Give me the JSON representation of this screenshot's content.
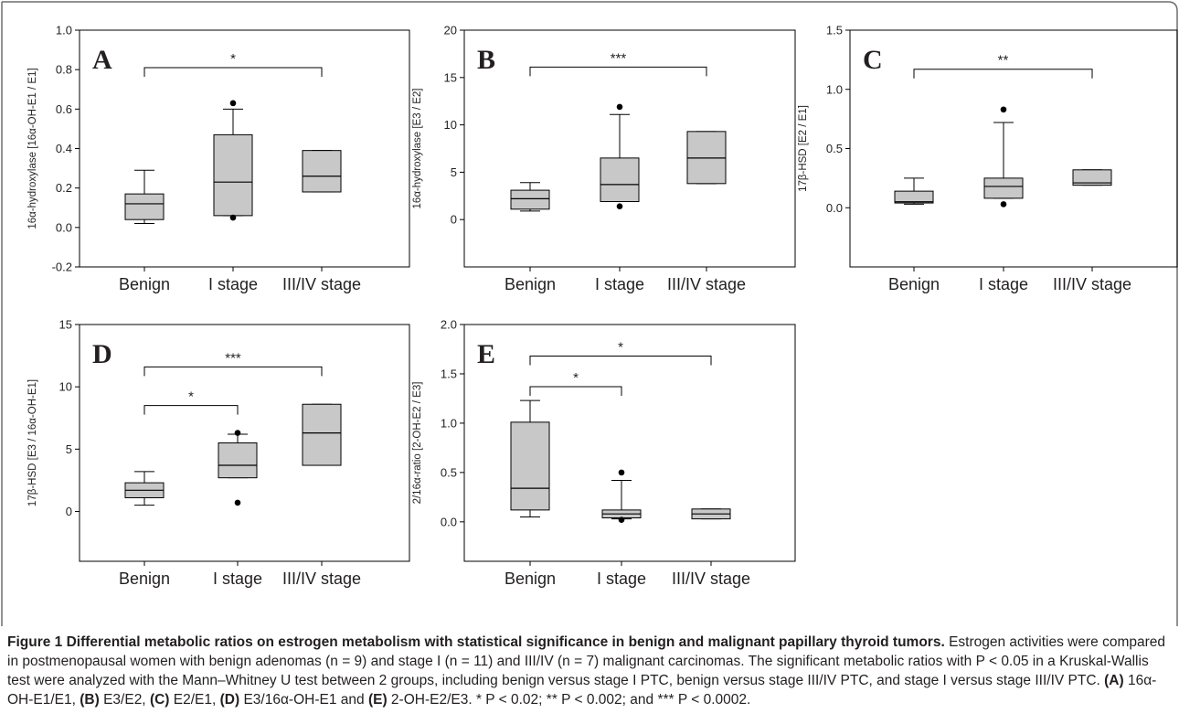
{
  "chart_data": [
    {
      "panel": "A",
      "type": "box",
      "ylabel": "16α-hydroxylase [16α-OH-E1 / E1]",
      "ylim": [
        -0.2,
        1.0
      ],
      "yticks": [
        "-0.2",
        "0.0",
        "0.2",
        "0.4",
        "0.6",
        "0.8",
        "1.0"
      ],
      "categories": [
        "Benign",
        "I stage",
        "III/IV stage"
      ],
      "boxes": [
        {
          "whisker_low": 0.02,
          "q1": 0.04,
          "median": 0.12,
          "q3": 0.17,
          "whisker_high": 0.29,
          "outliers": []
        },
        {
          "whisker_low": 0.06,
          "q1": 0.06,
          "median": 0.23,
          "q3": 0.47,
          "whisker_high": 0.6,
          "outliers": [
            0.63,
            0.05
          ]
        },
        {
          "whisker_low": 0.18,
          "q1": 0.18,
          "median": 0.26,
          "q3": 0.39,
          "whisker_high": 0.39,
          "outliers": []
        }
      ],
      "significance": [
        {
          "from": 0,
          "to": 2,
          "label": "*",
          "y": 0.81
        }
      ]
    },
    {
      "panel": "B",
      "type": "box",
      "ylabel": "16α-hydroxylase [E3 / E2]",
      "ylim": [
        -5,
        20
      ],
      "yticks": [
        "0",
        "5",
        "10",
        "15",
        "20"
      ],
      "categories": [
        "Benign",
        "I stage",
        "III/IV stage"
      ],
      "boxes": [
        {
          "whisker_low": 0.9,
          "q1": 1.1,
          "median": 2.2,
          "q3": 3.1,
          "whisker_high": 3.9,
          "outliers": []
        },
        {
          "whisker_low": 1.9,
          "q1": 1.9,
          "median": 3.7,
          "q3": 6.5,
          "whisker_high": 11.1,
          "outliers": [
            11.9,
            1.4
          ]
        },
        {
          "whisker_low": 3.8,
          "q1": 3.8,
          "median": 6.5,
          "q3": 9.3,
          "whisker_high": 9.3,
          "outliers": []
        }
      ],
      "significance": [
        {
          "from": 0,
          "to": 2,
          "label": "***",
          "y": 16.1
        }
      ]
    },
    {
      "panel": "C",
      "type": "box",
      "ylabel": "17β-HSD [E2 / E1]",
      "ylim": [
        -0.5,
        1.5
      ],
      "yticks": [
        "0.0",
        "0.5",
        "1.0",
        "1.5"
      ],
      "categories": [
        "Benign",
        "I stage",
        "III/IV stage"
      ],
      "boxes": [
        {
          "whisker_low": 0.03,
          "q1": 0.04,
          "median": 0.05,
          "q3": 0.14,
          "whisker_high": 0.25,
          "outliers": []
        },
        {
          "whisker_low": 0.08,
          "q1": 0.08,
          "median": 0.18,
          "q3": 0.25,
          "whisker_high": 0.72,
          "outliers": [
            0.83,
            0.03
          ]
        },
        {
          "whisker_low": 0.19,
          "q1": 0.19,
          "median": 0.21,
          "q3": 0.32,
          "whisker_high": 0.32,
          "outliers": []
        }
      ],
      "significance": [
        {
          "from": 0,
          "to": 2,
          "label": "**",
          "y": 1.17
        }
      ]
    },
    {
      "panel": "D",
      "type": "box",
      "ylabel": "17β-HSD [E3 / 16α-OH-E1]",
      "ylim": [
        -4,
        15
      ],
      "yticks": [
        "0",
        "5",
        "10",
        "15"
      ],
      "categories": [
        "Benign",
        "I stage",
        "III/IV stage"
      ],
      "boxes": [
        {
          "whisker_low": 0.5,
          "q1": 1.1,
          "median": 1.7,
          "q3": 2.3,
          "whisker_high": 3.2,
          "outliers": []
        },
        {
          "whisker_low": 2.7,
          "q1": 2.7,
          "median": 3.7,
          "q3": 5.5,
          "whisker_high": 6.2,
          "outliers": [
            6.3,
            0.7
          ]
        },
        {
          "whisker_low": 3.7,
          "q1": 3.7,
          "median": 6.3,
          "q3": 8.6,
          "whisker_high": 8.6,
          "outliers": []
        }
      ],
      "significance": [
        {
          "from": 0,
          "to": 1,
          "label": "*",
          "y": 8.5
        },
        {
          "from": 0,
          "to": 2,
          "label": "***",
          "y": 11.6
        }
      ]
    },
    {
      "panel": "E",
      "type": "box",
      "ylabel": "2/16α-ratio [2-OH-E2 / E3]",
      "ylim": [
        -0.4,
        2.0
      ],
      "yticks": [
        "0.0",
        "0.5",
        "1.0",
        "1.5",
        "2.0"
      ],
      "categories": [
        "Benign",
        "I stage",
        "III/IV stage"
      ],
      "boxes": [
        {
          "whisker_low": 0.05,
          "q1": 0.12,
          "median": 0.34,
          "q3": 1.01,
          "whisker_high": 1.23,
          "outliers": []
        },
        {
          "whisker_low": 0.03,
          "q1": 0.04,
          "median": 0.08,
          "q3": 0.12,
          "whisker_high": 0.42,
          "outliers": [
            0.5,
            0.02
          ]
        },
        {
          "whisker_low": 0.03,
          "q1": 0.03,
          "median": 0.08,
          "q3": 0.13,
          "whisker_high": 0.13,
          "outliers": []
        }
      ],
      "significance": [
        {
          "from": 0,
          "to": 1,
          "label": "*",
          "y": 1.37
        },
        {
          "from": 0,
          "to": 2,
          "label": "*",
          "y": 1.68
        }
      ]
    }
  ],
  "caption": {
    "title": "Figure 1 Differential metabolic ratios on estrogen metabolism with statistical significance in benign and malignant papillary thyroid tumors.",
    "body_1": " Estrogen activities were compared in postmenopausal women with benign adenomas (n = 9) and stage I (n = 11) and III/IV (n = 7) malignant carcinomas. The significant metabolic ratios with P < 0.05 in a Kruskal-Wallis test were analyzed with the Mann–Whitney U test between 2 groups, including benign versus stage I PTC, benign versus stage III/IV PTC, and stage I versus stage III/IV PTC. ",
    "ref_a": "(A)",
    "text_a": " 16α-OH-E1/E1, ",
    "ref_b": "(B)",
    "text_b": " E3/E2, ",
    "ref_c": "(C)",
    "text_c": " E2/E1, ",
    "ref_d": "(D)",
    "text_d": " E3/16α-OH-E1 and ",
    "ref_e": "(E)",
    "text_e": " 2-OH-E2/E3. * P < 0.02; ** P < 0.002; and *** P < 0.0002."
  },
  "colors": {
    "box_fill": "#c8c8c8",
    "stroke": "#000000",
    "frame": "#6d6e71",
    "text": "#231f20"
  }
}
